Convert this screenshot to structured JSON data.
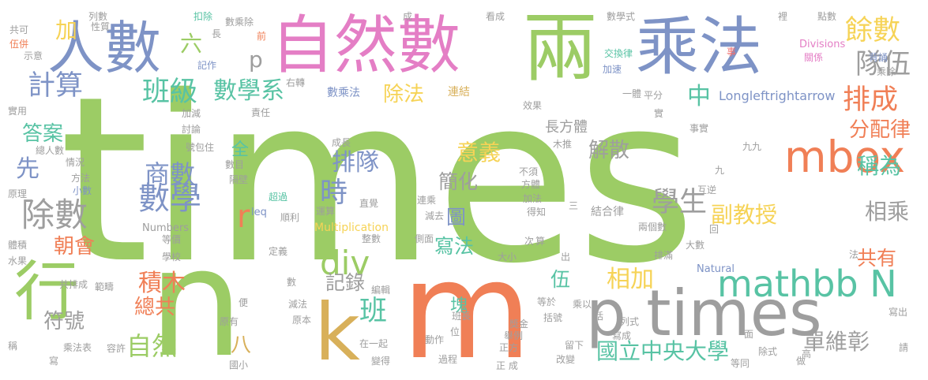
{
  "palette": {
    "green": "#9ccc65",
    "orange": "#f07f56",
    "gray": "#9e9e9e",
    "slate": "#7e93c6",
    "pink": "#e47ec5",
    "teal": "#58c3a4",
    "gold": "#d8b05a",
    "yellow": "#f6d356",
    "blue": "#6f8fc6",
    "red": "#ef6e6e"
  },
  "words": [
    {
      "text": "times",
      "color": "green"
    },
    {
      "text": "m",
      "color": "orange"
    },
    {
      "text": "n",
      "color": "green"
    },
    {
      "text": "p times",
      "color": "gray"
    },
    {
      "text": "自然數",
      "color": "pink"
    },
    {
      "text": "乘法",
      "color": "slate"
    },
    {
      "text": "兩",
      "color": "green"
    },
    {
      "text": "人數",
      "color": "slate"
    },
    {
      "text": "k",
      "color": "gold"
    },
    {
      "text": "行",
      "color": "green"
    },
    {
      "text": "mbox",
      "color": "orange"
    },
    {
      "text": "mathbb N",
      "color": "teal"
    },
    {
      "text": "div",
      "color": "green"
    },
    {
      "text": "除數",
      "color": "gray"
    },
    {
      "text": "數學",
      "color": "slate"
    },
    {
      "text": "餘數",
      "color": "yellow"
    },
    {
      "text": "隊伍",
      "color": "gray"
    },
    {
      "text": "班級",
      "color": "teal"
    },
    {
      "text": "計算",
      "color": "slate"
    },
    {
      "text": "數學系",
      "color": "teal"
    },
    {
      "text": "排成",
      "color": "orange"
    },
    {
      "text": "學生",
      "color": "gray"
    },
    {
      "text": "時",
      "color": "slate"
    },
    {
      "text": "班",
      "color": "teal"
    },
    {
      "text": "國立中央大學",
      "color": "teal"
    },
    {
      "text": "單維彰",
      "color": "gray"
    },
    {
      "text": "稱為",
      "color": "teal"
    },
    {
      "text": "相乘",
      "color": "gray"
    },
    {
      "text": "副教授",
      "color": "yellow"
    },
    {
      "text": "分配律",
      "color": "orange"
    },
    {
      "text": "商數",
      "color": "slate"
    },
    {
      "text": "自然",
      "color": "green"
    },
    {
      "text": "積木",
      "color": "orange"
    },
    {
      "text": "總共",
      "color": "orange"
    },
    {
      "text": "符號",
      "color": "gray"
    },
    {
      "text": "朝會",
      "color": "orange"
    },
    {
      "text": "先",
      "color": "slate"
    },
    {
      "text": "答案",
      "color": "teal"
    },
    {
      "text": "除法",
      "color": "yellow"
    },
    {
      "text": "相加",
      "color": "yellow"
    },
    {
      "text": "意義",
      "color": "yellow"
    },
    {
      "text": "解散",
      "color": "gray"
    },
    {
      "text": "排隊",
      "color": "slate"
    },
    {
      "text": "簡化",
      "color": "gray"
    },
    {
      "text": "寫法",
      "color": "teal"
    },
    {
      "text": "記錄",
      "color": "gray"
    },
    {
      "text": "共有",
      "color": "orange"
    },
    {
      "text": "中",
      "color": "teal"
    },
    {
      "text": "加",
      "color": "yellow"
    },
    {
      "text": "六",
      "color": "green"
    },
    {
      "text": "p",
      "color": "gray"
    },
    {
      "text": "r",
      "color": "orange"
    },
    {
      "text": "八",
      "color": "gold"
    },
    {
      "text": "伍",
      "color": "teal"
    },
    {
      "text": "全",
      "color": "teal"
    },
    {
      "text": "圖",
      "color": "slate"
    },
    {
      "text": "塊",
      "color": "teal"
    },
    {
      "text": "Longleftrightarrow",
      "color": "slate"
    },
    {
      "text": "長方體",
      "color": "gray"
    },
    {
      "text": "數乘法",
      "color": "slate"
    },
    {
      "text": "連結",
      "color": "gold"
    },
    {
      "text": "結合律",
      "color": "gray"
    },
    {
      "text": "Multiplication",
      "color": "yellow"
    },
    {
      "text": "Numbers",
      "color": "gray"
    },
    {
      "text": "Natural",
      "color": "slate"
    },
    {
      "text": "Divisions",
      "color": "pink"
    },
    {
      "text": "leq",
      "color": "slate"
    },
    {
      "text": "一體",
      "color": "gray"
    },
    {
      "text": "列數",
      "color": "gray"
    },
    {
      "text": "性質",
      "color": "gray"
    },
    {
      "text": "共可",
      "color": "gray"
    },
    {
      "text": "伍併",
      "color": "orange"
    },
    {
      "text": "示意",
      "color": "gray"
    },
    {
      "text": "扣除",
      "color": "teal"
    },
    {
      "text": "數乘除",
      "color": "gray"
    },
    {
      "text": "記作",
      "color": "slate"
    },
    {
      "text": "長",
      "color": "gray"
    },
    {
      "text": "前",
      "color": "orange"
    },
    {
      "text": "成",
      "color": "gray"
    },
    {
      "text": "看成",
      "color": "gray"
    },
    {
      "text": "數學式",
      "color": "gray"
    },
    {
      "text": "裡",
      "color": "gray"
    },
    {
      "text": "點數",
      "color": "gray"
    },
    {
      "text": "事",
      "color": "red"
    },
    {
      "text": "交換律",
      "color": "teal"
    },
    {
      "text": "關係",
      "color": "pink"
    },
    {
      "text": "背誦",
      "color": "slate"
    },
    {
      "text": "乘除",
      "color": "gray"
    },
    {
      "text": "加速",
      "color": "slate"
    },
    {
      "text": "實用",
      "color": "gray"
    },
    {
      "text": "加減",
      "color": "gray"
    },
    {
      "text": "討論",
      "color": "gray"
    },
    {
      "text": "總人數",
      "color": "gray"
    },
    {
      "text": "情況",
      "color": "gray"
    },
    {
      "text": "方法",
      "color": "gray"
    },
    {
      "text": "小數",
      "color": "slate"
    },
    {
      "text": "原理",
      "color": "gray"
    },
    {
      "text": "水果",
      "color": "gray"
    },
    {
      "text": "共排成",
      "color": "gray"
    },
    {
      "text": "範疇",
      "color": "gray"
    },
    {
      "text": "體積",
      "color": "gray"
    },
    {
      "text": "乘法表",
      "color": "gray"
    },
    {
      "text": "容許",
      "color": "gray"
    },
    {
      "text": "稱",
      "color": "gray"
    },
    {
      "text": "寫",
      "color": "gray"
    },
    {
      "text": "責任",
      "color": "gray"
    },
    {
      "text": "數目",
      "color": "gray"
    },
    {
      "text": "隔壁",
      "color": "gray"
    },
    {
      "text": "超過",
      "color": "teal"
    },
    {
      "text": "號包住",
      "color": "gray"
    },
    {
      "text": "運算",
      "color": "gray"
    },
    {
      "text": "順利",
      "color": "gray"
    },
    {
      "text": "定義",
      "color": "gray"
    },
    {
      "text": "數",
      "color": "gray"
    },
    {
      "text": "減法",
      "color": "gray"
    },
    {
      "text": "國小",
      "color": "gray"
    },
    {
      "text": "變得",
      "color": "gray"
    },
    {
      "text": "在一起",
      "color": "gray"
    },
    {
      "text": "編輯",
      "color": "gray"
    },
    {
      "text": "原本",
      "color": "gray"
    },
    {
      "text": "直覺",
      "color": "gray"
    },
    {
      "text": "整數",
      "color": "gray"
    },
    {
      "text": "連乘",
      "color": "gray"
    },
    {
      "text": "減去",
      "color": "gray"
    },
    {
      "text": "側面",
      "color": "gray"
    },
    {
      "text": "大小",
      "color": "gray"
    },
    {
      "text": "算",
      "color": "gray"
    },
    {
      "text": "次",
      "color": "gray"
    },
    {
      "text": "成長",
      "color": "gray"
    },
    {
      "text": "過程",
      "color": "gray"
    },
    {
      "text": "動作",
      "color": "gray"
    },
    {
      "text": "班長",
      "color": "gray"
    },
    {
      "text": "位",
      "color": "gray"
    },
    {
      "text": "效果",
      "color": "gray"
    },
    {
      "text": "實",
      "color": "gray"
    },
    {
      "text": "木推",
      "color": "gray"
    },
    {
      "text": "不須",
      "color": "gray"
    },
    {
      "text": "方體",
      "color": "gray"
    },
    {
      "text": "加法",
      "color": "gray"
    },
    {
      "text": "得知",
      "color": "gray"
    },
    {
      "text": "三",
      "color": "gray"
    },
    {
      "text": "九九",
      "color": "gray"
    },
    {
      "text": "九",
      "color": "gray"
    },
    {
      "text": "互逆",
      "color": "gray"
    },
    {
      "text": "兩個數",
      "color": "gray"
    },
    {
      "text": "回",
      "color": "gray"
    },
    {
      "text": "大數",
      "color": "gray"
    },
    {
      "text": "等於",
      "color": "gray"
    },
    {
      "text": "括號",
      "color": "gray"
    },
    {
      "text": "乘以",
      "color": "gray"
    },
    {
      "text": "列式",
      "color": "gray"
    },
    {
      "text": "寫成",
      "color": "gray"
    },
    {
      "text": "括",
      "color": "gray"
    },
    {
      "text": "面",
      "color": "gray"
    },
    {
      "text": "法",
      "color": "gray"
    },
    {
      "text": "寫出",
      "color": "gray"
    },
    {
      "text": "請",
      "color": "gray"
    },
    {
      "text": "除式",
      "color": "gray"
    },
    {
      "text": "等同",
      "color": "gray"
    },
    {
      "text": "做",
      "color": "gray"
    },
    {
      "text": "高",
      "color": "gray"
    },
    {
      "text": "排滿",
      "color": "gray"
    },
    {
      "text": "改變",
      "color": "gray"
    },
    {
      "text": "留下",
      "color": "gray"
    },
    {
      "text": "獎金",
      "color": "gray"
    },
    {
      "text": "舉例",
      "color": "gray"
    },
    {
      "text": "正方",
      "color": "gray"
    },
    {
      "text": "正 成",
      "color": "gray"
    },
    {
      "text": "事實",
      "color": "gray"
    },
    {
      "text": "出",
      "color": "gray"
    },
    {
      "text": "便",
      "color": "gray"
    },
    {
      "text": "原有",
      "color": "gray"
    },
    {
      "text": "等價",
      "color": "gray"
    },
    {
      "text": "學校",
      "color": "gray"
    },
    {
      "text": "右轉",
      "color": "gray"
    },
    {
      "text": "平分",
      "color": "gray"
    }
  ]
}
